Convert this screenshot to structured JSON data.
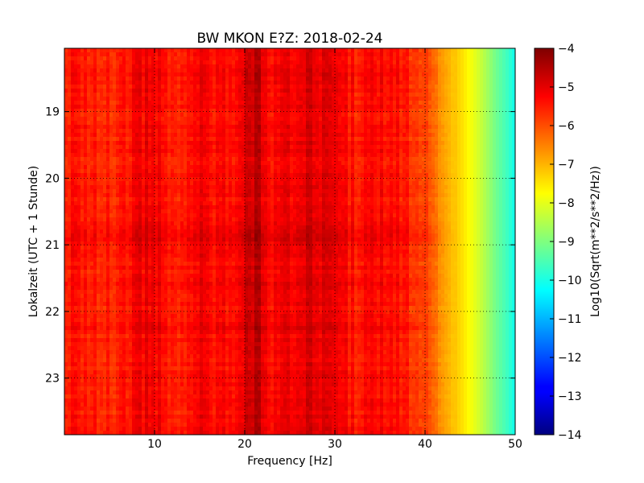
{
  "chart_data": {
    "type": "heatmap",
    "title": "BW MKON E?Z: 2018-02-24",
    "xlabel": "Frequency [Hz]",
    "ylabel": "Lokalzeit (UTC + 1 Stunde)",
    "colorbar_label": "Log10(Sqrt(m**2/s**2/Hz))",
    "xlim": [
      0,
      50
    ],
    "ylim": [
      18.05,
      23.85
    ],
    "y_inverted": true,
    "x_ticks": [
      "10",
      "20",
      "30",
      "40",
      "50"
    ],
    "y_ticks": [
      "19",
      "20",
      "21",
      "22",
      "23"
    ],
    "colorbar_range": [
      -14,
      -4
    ],
    "colorbar_ticks": [
      "−4",
      "−5",
      "−6",
      "−7",
      "−8",
      "−9",
      "−10",
      "−11",
      "−12",
      "−13",
      "−14"
    ],
    "colormap": "jet",
    "grid": true,
    "grid_style": "dotted",
    "profile": {
      "frequency": [
        0,
        5,
        9,
        12,
        15,
        18,
        20,
        21.5,
        23,
        26,
        28,
        30,
        33,
        36,
        38,
        40,
        41,
        42,
        43,
        44,
        45,
        46,
        47,
        48,
        49,
        50
      ],
      "level": [
        -5.4,
        -5.6,
        -5.1,
        -5.5,
        -5.2,
        -5.4,
        -4.9,
        -4.7,
        -5.2,
        -5.1,
        -4.9,
        -5.3,
        -5.5,
        -5.3,
        -5.6,
        -5.8,
        -6.4,
        -6.8,
        -7.1,
        -7.4,
        -7.8,
        -8.2,
        -8.7,
        -9.2,
        -9.6,
        -10.1
      ]
    },
    "events": [
      {
        "time": 20.9,
        "level_boost": 0.35
      },
      {
        "time": 21.6,
        "level_boost": 0.2
      },
      {
        "time": 22.2,
        "level_boost": 0.15
      }
    ]
  }
}
